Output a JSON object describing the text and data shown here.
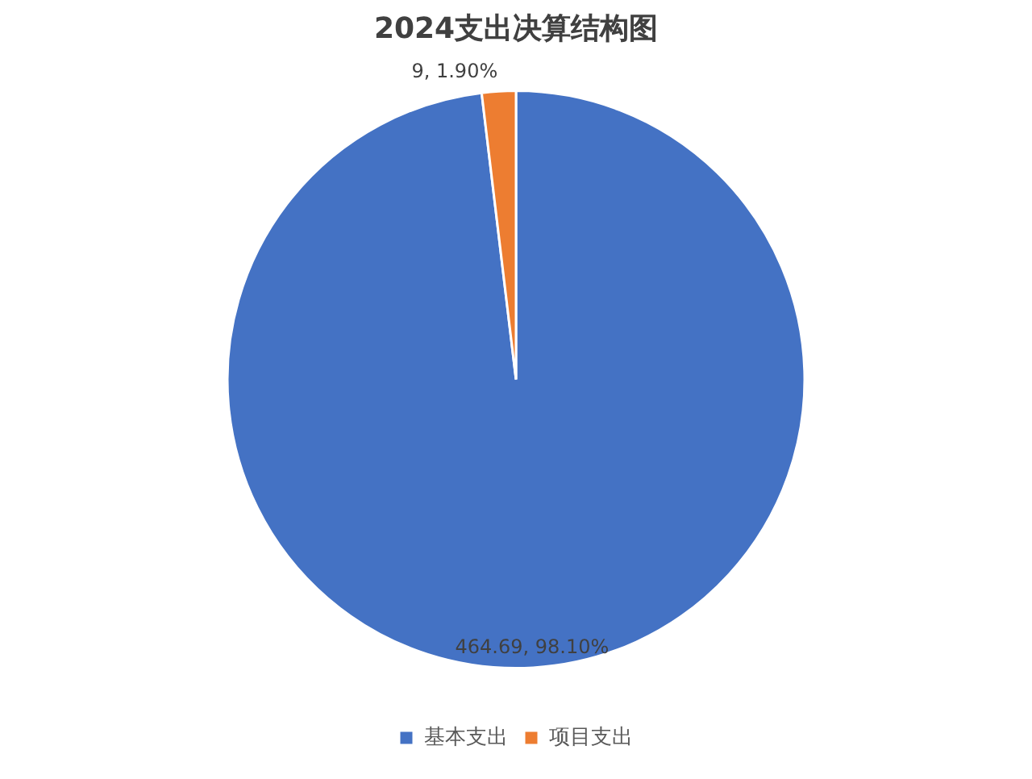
{
  "chart_data": {
    "type": "pie",
    "title": "2024支出决算结构图",
    "categories": [
      "基本支出",
      "项目支出"
    ],
    "values": [
      464.69,
      9
    ],
    "colors": [
      "#4472c4",
      "#ed7d31"
    ],
    "value_labels": [
      "464.69, 98.10%",
      "9, 1.90%"
    ],
    "legend": "bottom"
  }
}
